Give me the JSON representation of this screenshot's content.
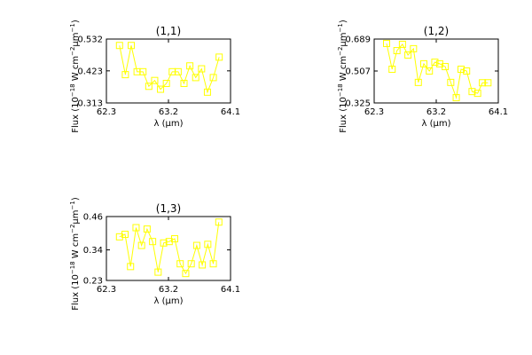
{
  "chart_data": [
    {
      "type": "line",
      "title": "(1,1)",
      "xlabel": "λ (μm)",
      "ylabel": [
        "Flux (10",
        "−18",
        " W cm",
        "−2",
        "μm",
        "−1",
        ")"
      ],
      "color": "#ffff00",
      "marker": "square",
      "x": [
        62.49,
        62.575,
        62.66,
        62.745,
        62.83,
        62.915,
        63.0,
        63.085,
        63.17,
        63.255,
        63.34,
        63.425,
        63.51,
        63.595,
        63.68,
        63.765,
        63.85,
        63.935
      ],
      "values": [
        0.51,
        0.41,
        0.51,
        0.42,
        0.42,
        0.37,
        0.39,
        0.36,
        0.38,
        0.42,
        0.42,
        0.38,
        0.44,
        0.4,
        0.43,
        0.35,
        0.4,
        0.47
      ],
      "xlim": [
        62.3,
        64.1
      ],
      "xticks": [
        62.3,
        63.2,
        64.1
      ],
      "ylim": [
        0.313,
        0.532
      ],
      "yticks": [
        0.313,
        0.423,
        0.532
      ]
    },
    {
      "type": "line",
      "title": "(1,2)",
      "xlabel": "λ (μm)",
      "ylabel": [
        "Flux (10",
        "−18",
        " W cm",
        "−2",
        "μm",
        "−1",
        ")"
      ],
      "color": "#ffff00",
      "marker": "square",
      "x": [
        62.48,
        62.56,
        62.63,
        62.71,
        62.79,
        62.87,
        62.94,
        63.02,
        63.1,
        63.18,
        63.25,
        63.33,
        63.41,
        63.49,
        63.56,
        63.64,
        63.72,
        63.8,
        63.87,
        63.95
      ],
      "values": [
        0.664,
        0.517,
        0.623,
        0.659,
        0.598,
        0.634,
        0.442,
        0.548,
        0.507,
        0.557,
        0.548,
        0.532,
        0.442,
        0.355,
        0.517,
        0.507,
        0.39,
        0.38,
        0.44,
        0.44
      ],
      "xlim": [
        62.3,
        64.1
      ],
      "xticks": [
        62.3,
        63.2,
        64.1
      ],
      "ylim": [
        0.325,
        0.689
      ],
      "yticks": [
        0.325,
        0.507,
        0.689
      ]
    },
    {
      "type": "line",
      "title": "(1,3)",
      "xlabel": "λ (μm)",
      "ylabel": [
        "Flux (10",
        "−18",
        " W cm",
        "−2",
        "μm",
        "−1",
        ")"
      ],
      "color": "#ffff00",
      "marker": "square",
      "x": [
        62.49,
        62.57,
        62.65,
        62.73,
        62.81,
        62.89,
        62.97,
        63.05,
        63.13,
        63.21,
        63.29,
        63.37,
        63.45,
        63.53,
        63.61,
        63.69,
        63.77,
        63.85,
        63.93
      ],
      "values": [
        0.387,
        0.396,
        0.28,
        0.42,
        0.356,
        0.415,
        0.37,
        0.26,
        0.365,
        0.37,
        0.38,
        0.29,
        0.255,
        0.29,
        0.356,
        0.286,
        0.36,
        0.29,
        0.44
      ],
      "xlim": [
        62.3,
        64.1
      ],
      "xticks": [
        62.3,
        63.2,
        64.1
      ],
      "ylim": [
        0.23,
        0.46
      ],
      "yticks": [
        0.23,
        0.34,
        0.46
      ]
    }
  ]
}
